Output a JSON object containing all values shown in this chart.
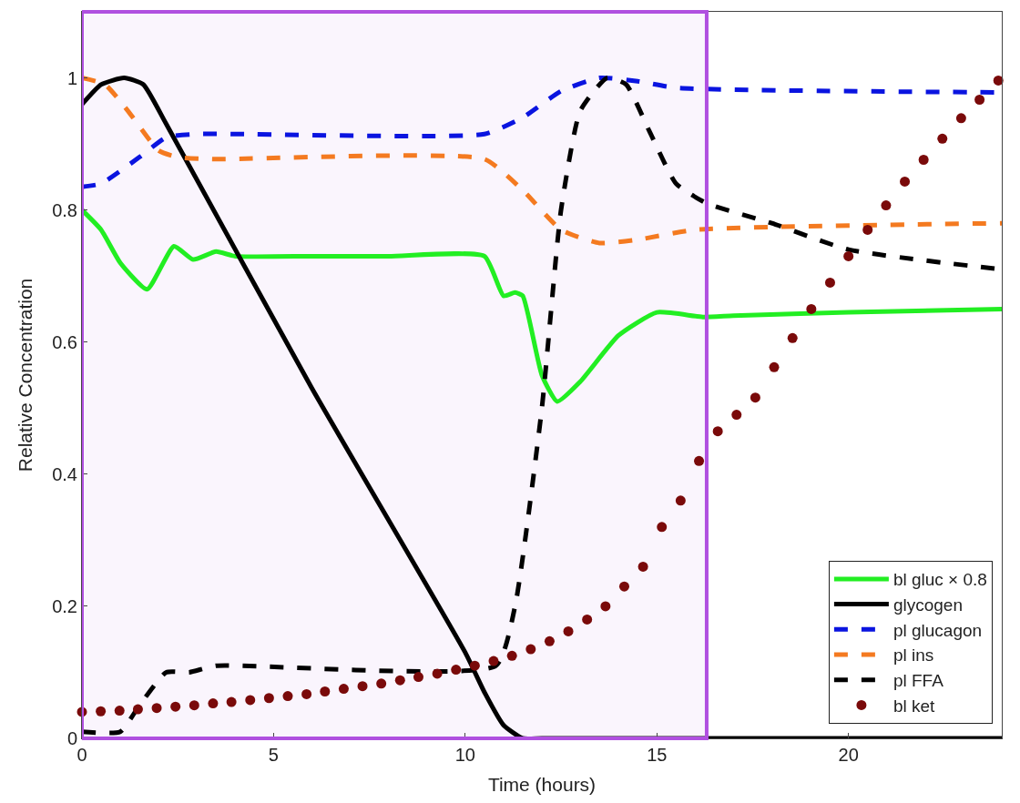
{
  "chart_data": {
    "type": "line",
    "xlabel": "Time (hours)",
    "ylabel": "Relative Concentration",
    "xlim": [
      0,
      24
    ],
    "ylim": [
      0,
      1.1
    ],
    "xticks": [
      0,
      5,
      10,
      15,
      20
    ],
    "yticks": [
      0,
      0.2,
      0.4,
      0.6,
      0.8,
      1
    ],
    "grid": false,
    "legend": "bottom right",
    "marker": "none",
    "bands": [
      {
        "axis": "x",
        "from": 0,
        "to": 16.3,
        "color": "#b050e0"
      }
    ],
    "series": [
      {
        "name": "bl gluc × 0.8",
        "color": "#22ee22",
        "line_style": "solid",
        "x": [
          0,
          0.5,
          1.0,
          1.7,
          2.4,
          2.9,
          3.5,
          4,
          6,
          8,
          10.5,
          11,
          11.3,
          11.5,
          12,
          12.4,
          13,
          14,
          15,
          16.2,
          17,
          20,
          24
        ],
        "values": [
          0.8,
          0.77,
          0.72,
          0.68,
          0.745,
          0.725,
          0.737,
          0.73,
          0.73,
          0.73,
          0.73,
          0.67,
          0.675,
          0.67,
          0.55,
          0.51,
          0.54,
          0.61,
          0.645,
          0.638,
          0.64,
          0.645,
          0.65
        ]
      },
      {
        "name": "glycogen",
        "color": "#000000",
        "line_style": "solid",
        "x": [
          0,
          0.5,
          1.1,
          1.6,
          2.2,
          6,
          10,
          10.5,
          11,
          11.5,
          12,
          24
        ],
        "values": [
          0.96,
          0.99,
          1.0,
          0.99,
          0.93,
          0.53,
          0.13,
          0.07,
          0.02,
          0.0,
          0.0,
          0.0
        ]
      },
      {
        "name": "pl glucagon",
        "color": "#0a14e0",
        "line_style": "dashed",
        "x": [
          0,
          0.5,
          1.5,
          2.2,
          3,
          10.5,
          11.5,
          12.5,
          13.5,
          14.5,
          15.5,
          24
        ],
        "values": [
          0.835,
          0.84,
          0.88,
          0.91,
          0.915,
          0.915,
          0.94,
          0.98,
          1.0,
          0.995,
          0.985,
          0.978
        ]
      },
      {
        "name": "pl ins",
        "color": "#f47a20",
        "line_style": "dashed",
        "x": [
          0,
          0.6,
          1.2,
          2,
          2.5,
          3.5,
          10.5,
          11.5,
          12.5,
          13.5,
          14.5,
          16,
          24
        ],
        "values": [
          1.0,
          0.99,
          0.95,
          0.89,
          0.88,
          0.877,
          0.877,
          0.83,
          0.77,
          0.75,
          0.755,
          0.77,
          0.78
        ]
      },
      {
        "name": "pl FFA",
        "color": "#000000",
        "line_style": "dashed",
        "x": [
          0,
          1,
          1.5,
          2.2,
          2.8,
          3.5,
          10.8,
          11.3,
          12,
          12.5,
          13,
          13.7,
          14.2,
          14.8,
          15.5,
          16.3,
          18,
          20,
          24
        ],
        "values": [
          0.01,
          0.01,
          0.05,
          0.1,
          0.1,
          0.11,
          0.11,
          0.2,
          0.5,
          0.8,
          0.95,
          1.0,
          0.99,
          0.92,
          0.84,
          0.81,
          0.78,
          0.74,
          0.71
        ]
      },
      {
        "name": "bl ket",
        "color": "#7a0a0a",
        "type": "scatter",
        "marker": "circle",
        "x": [
          0,
          0.49,
          0.98,
          1.46,
          1.95,
          2.44,
          2.93,
          3.42,
          3.9,
          4.39,
          4.88,
          5.37,
          5.86,
          6.34,
          6.83,
          7.32,
          7.81,
          8.3,
          8.78,
          9.27,
          9.76,
          10.25,
          10.74,
          11.22,
          11.71,
          12.2,
          12.69,
          13.18,
          13.66,
          14.15,
          14.64,
          15.13,
          15.62,
          16.1,
          16.59,
          17.08,
          17.57,
          18.06,
          18.54,
          19.03,
          19.52,
          20.0,
          20.5,
          20.98,
          21.47,
          21.96,
          22.45,
          22.94,
          23.42,
          23.91
        ],
        "values": [
          0.04,
          0.041,
          0.042,
          0.044,
          0.046,
          0.048,
          0.05,
          0.053,
          0.055,
          0.058,
          0.061,
          0.064,
          0.067,
          0.071,
          0.075,
          0.079,
          0.083,
          0.088,
          0.093,
          0.098,
          0.104,
          0.11,
          0.117,
          0.125,
          0.135,
          0.147,
          0.162,
          0.18,
          0.2,
          0.23,
          0.26,
          0.32,
          0.36,
          0.42,
          0.465,
          0.49,
          0.516,
          0.562,
          0.606,
          0.65,
          0.69,
          0.73,
          0.77,
          0.807,
          0.843,
          0.876,
          0.908,
          0.939,
          0.967,
          0.996
        ]
      }
    ]
  }
}
